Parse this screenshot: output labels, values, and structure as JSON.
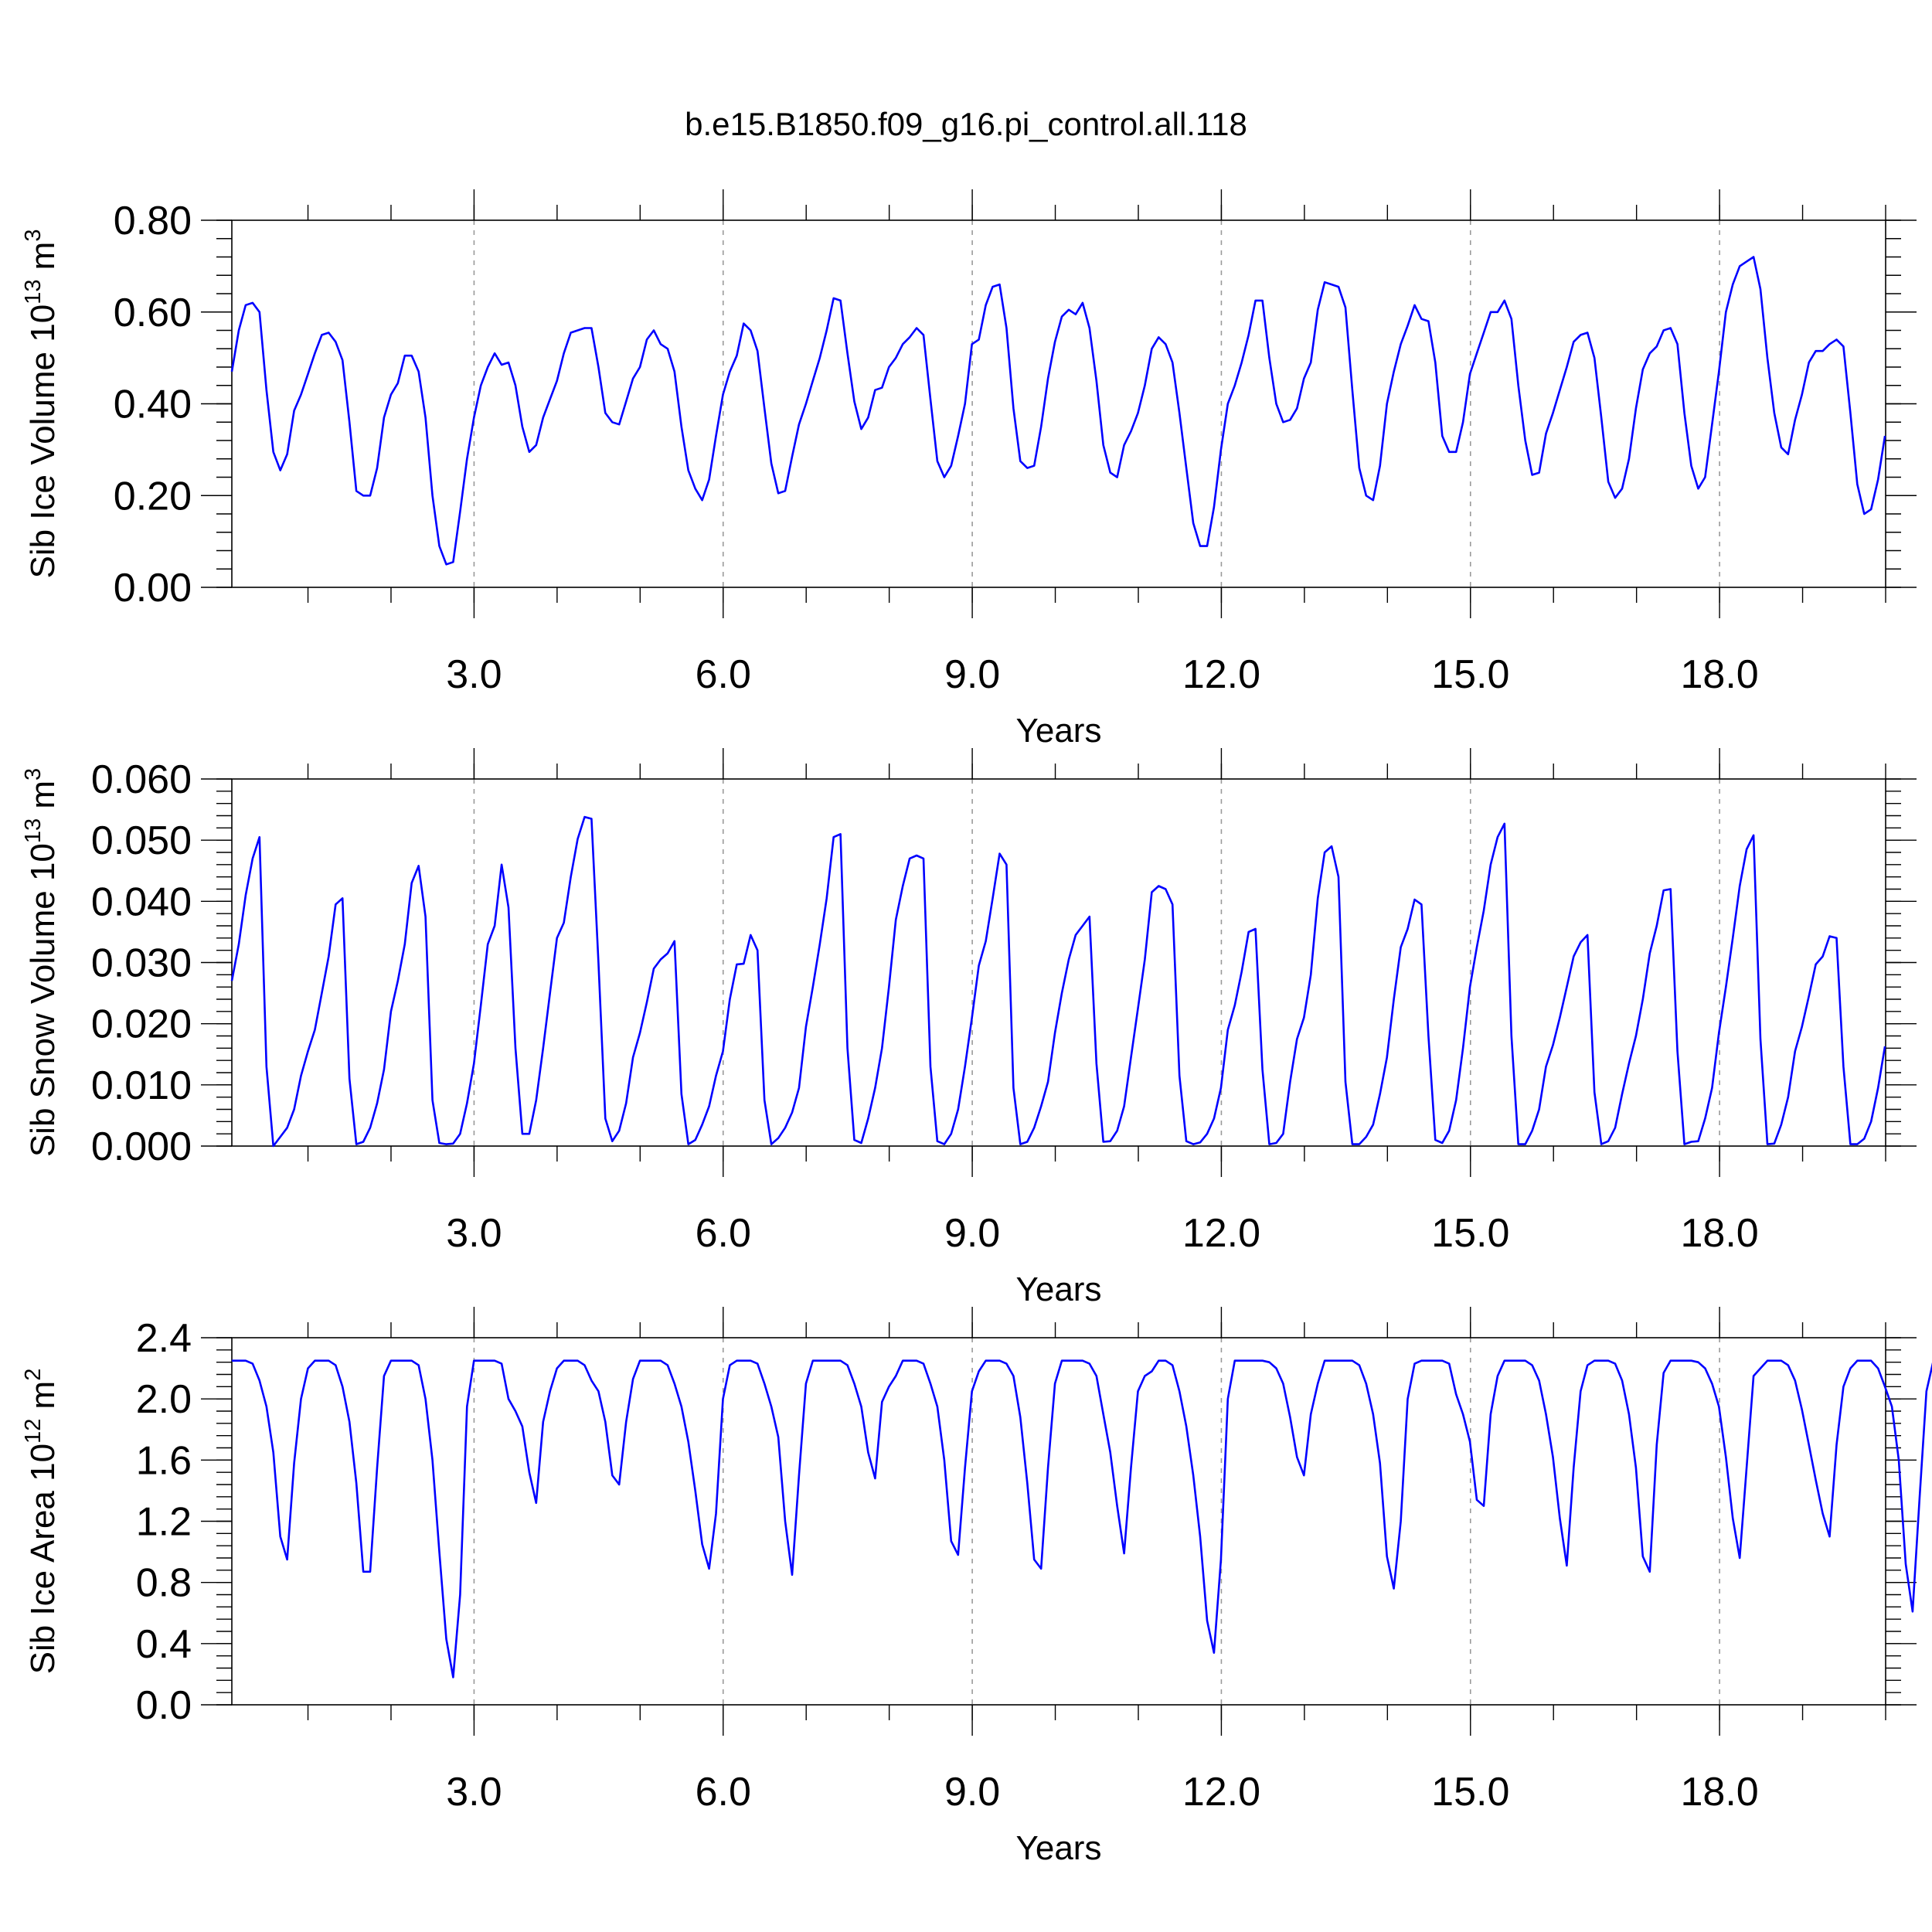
{
  "figure_title": "b.e15.B1850.f09_g16.pi_control.all.118",
  "chart_data": [
    {
      "type": "line",
      "xlabel": "Years",
      "ylabel": {
        "text": "Sib Ice Volume 10",
        "sup": "13",
        "unit": " m",
        "unit_sup": "3"
      },
      "xlim": [
        0.083,
        20.0
      ],
      "ylim": [
        0.0,
        0.8
      ],
      "y_ticks": [
        0.0,
        0.2,
        0.4,
        0.6,
        0.8
      ],
      "y_tick_labels": [
        "0.00",
        "0.20",
        "0.40",
        "0.60",
        "0.80"
      ],
      "y_minor_step": 0.04,
      "x_ticks": [
        3,
        6,
        9,
        12,
        15,
        18
      ],
      "x_tick_labels": [
        "3.0",
        "6.0",
        "9.0",
        "12.0",
        "15.0",
        "18.0"
      ],
      "x_minor_step": 1,
      "grid": "vertical dashed at labeled years",
      "series": [
        {
          "color": "#0000ff",
          "x_start": 0.083,
          "x_step": 0.0833,
          "values": [
            0.47,
            0.56,
            0.615,
            0.62,
            0.6,
            0.43,
            0.295,
            0.255,
            0.29,
            0.385,
            0.42,
            0.465,
            0.51,
            0.55,
            0.555,
            0.535,
            0.495,
            0.36,
            0.21,
            0.2,
            0.2,
            0.26,
            0.37,
            0.42,
            0.445,
            0.505,
            0.505,
            0.47,
            0.37,
            0.2,
            0.09,
            0.05,
            0.055,
            0.165,
            0.28,
            0.37,
            0.44,
            0.48,
            0.51,
            0.485,
            0.49,
            0.44,
            0.35,
            0.295,
            0.31,
            0.37,
            0.41,
            0.45,
            0.51,
            0.555,
            0.56,
            0.565,
            0.565,
            0.48,
            0.38,
            0.36,
            0.355,
            0.405,
            0.455,
            0.48,
            0.54,
            0.56,
            0.53,
            0.52,
            0.47,
            0.35,
            0.255,
            0.215,
            0.19,
            0.235,
            0.33,
            0.42,
            0.47,
            0.505,
            0.575,
            0.56,
            0.515,
            0.39,
            0.27,
            0.205,
            0.21,
            0.285,
            0.355,
            0.4,
            0.45,
            0.5,
            0.56,
            0.63,
            0.625,
            0.51,
            0.405,
            0.345,
            0.37,
            0.43,
            0.435,
            0.48,
            0.5,
            0.53,
            0.545,
            0.565,
            0.55,
            0.41,
            0.275,
            0.24,
            0.265,
            0.33,
            0.4,
            0.53,
            0.54,
            0.615,
            0.655,
            0.66,
            0.565,
            0.39,
            0.275,
            0.26,
            0.265,
            0.35,
            0.455,
            0.535,
            0.59,
            0.605,
            0.595,
            0.62,
            0.565,
            0.45,
            0.31,
            0.25,
            0.24,
            0.31,
            0.34,
            0.38,
            0.44,
            0.52,
            0.545,
            0.53,
            0.49,
            0.38,
            0.26,
            0.14,
            0.09,
            0.09,
            0.175,
            0.3,
            0.4,
            0.44,
            0.49,
            0.55,
            0.625,
            0.625,
            0.5,
            0.4,
            0.36,
            0.365,
            0.39,
            0.455,
            0.49,
            0.605,
            0.665,
            0.66,
            0.655,
            0.61,
            0.43,
            0.26,
            0.2,
            0.19,
            0.265,
            0.4,
            0.47,
            0.53,
            0.57,
            0.615,
            0.585,
            0.58,
            0.49,
            0.33,
            0.295,
            0.295,
            0.36,
            0.465,
            0.51,
            0.555,
            0.6,
            0.6,
            0.625,
            0.585,
            0.44,
            0.32,
            0.245,
            0.25,
            0.335,
            0.38,
            0.43,
            0.48,
            0.535,
            0.55,
            0.555,
            0.5,
            0.37,
            0.23,
            0.195,
            0.215,
            0.28,
            0.39,
            0.475,
            0.51,
            0.525,
            0.56,
            0.565,
            0.53,
            0.38,
            0.265,
            0.215,
            0.24,
            0.355,
            0.47,
            0.6,
            0.66,
            0.7,
            0.71,
            0.72,
            0.65,
            0.5,
            0.38,
            0.305,
            0.29,
            0.365,
            0.42,
            0.49,
            0.515,
            0.515,
            0.53,
            0.54,
            0.525,
            0.38,
            0.225,
            0.16,
            0.17,
            0.235,
            0.33
          ]
        }
      ]
    },
    {
      "type": "line",
      "xlabel": "Years",
      "ylabel": {
        "text": "Sib Snow Volume 10",
        "sup": "13",
        "unit": " m",
        "unit_sup": "3"
      },
      "xlim": [
        0.083,
        20.0
      ],
      "ylim": [
        0.0,
        0.06
      ],
      "y_ticks": [
        0.0,
        0.01,
        0.02,
        0.03,
        0.04,
        0.05,
        0.06
      ],
      "y_tick_labels": [
        "0.000",
        "0.010",
        "0.020",
        "0.030",
        "0.040",
        "0.050",
        "0.060"
      ],
      "y_minor_step": 0.002,
      "x_ticks": [
        3,
        6,
        9,
        12,
        15,
        18
      ],
      "x_tick_labels": [
        "3.0",
        "6.0",
        "9.0",
        "12.0",
        "15.0",
        "18.0"
      ],
      "x_minor_step": 1,
      "grid": "vertical dashed at labeled years",
      "series": [
        {
          "color": "#0000ff",
          "x_start": 0.083,
          "x_step": 0.0833,
          "values": [
            0.027,
            0.033,
            0.041,
            0.047,
            0.0505,
            0.013,
            0.0,
            0.0015,
            0.003,
            0.006,
            0.0115,
            0.0155,
            0.019,
            0.025,
            0.031,
            0.0395,
            0.0405,
            0.011,
            0.0003,
            0.0007,
            0.003,
            0.007,
            0.0125,
            0.022,
            0.027,
            0.033,
            0.043,
            0.0458,
            0.0375,
            0.0075,
            0.0005,
            0.0003,
            0.0004,
            0.002,
            0.007,
            0.0135,
            0.023,
            0.033,
            0.036,
            0.046,
            0.039,
            0.016,
            0.002,
            0.002,
            0.0075,
            0.016,
            0.025,
            0.034,
            0.0365,
            0.044,
            0.0502,
            0.0538,
            0.0535,
            0.03,
            0.0045,
            0.0008,
            0.0025,
            0.007,
            0.0145,
            0.0185,
            0.0235,
            0.029,
            0.0305,
            0.0315,
            0.0335,
            0.0085,
            0.0003,
            0.001,
            0.0035,
            0.0065,
            0.0115,
            0.0155,
            0.024,
            0.0297,
            0.0298,
            0.0345,
            0.032,
            0.0075,
            0.0003,
            0.0013,
            0.003,
            0.0055,
            0.0095,
            0.0195,
            0.026,
            0.033,
            0.0405,
            0.0505,
            0.051,
            0.016,
            0.001,
            0.0005,
            0.0045,
            0.0095,
            0.016,
            0.026,
            0.037,
            0.0425,
            0.047,
            0.0475,
            0.047,
            0.013,
            0.0008,
            0.0003,
            0.002,
            0.006,
            0.013,
            0.021,
            0.0295,
            0.0335,
            0.0405,
            0.0478,
            0.046,
            0.0095,
            0.0003,
            0.0007,
            0.003,
            0.0065,
            0.0105,
            0.0185,
            0.025,
            0.0305,
            0.0345,
            0.036,
            0.0375,
            0.0135,
            0.0007,
            0.0008,
            0.0025,
            0.0065,
            0.0145,
            0.0225,
            0.0305,
            0.0415,
            0.0425,
            0.042,
            0.0395,
            0.0115,
            0.0008,
            0.0003,
            0.0006,
            0.002,
            0.0045,
            0.0095,
            0.019,
            0.023,
            0.0285,
            0.035,
            0.0355,
            0.0125,
            0.0003,
            0.0005,
            0.002,
            0.0105,
            0.0175,
            0.021,
            0.028,
            0.0405,
            0.048,
            0.049,
            0.044,
            0.0105,
            0.0003,
            0.0003,
            0.0015,
            0.0035,
            0.0085,
            0.0145,
            0.024,
            0.0325,
            0.0355,
            0.0403,
            0.0395,
            0.018,
            0.001,
            0.0005,
            0.0025,
            0.0075,
            0.016,
            0.026,
            0.0325,
            0.0385,
            0.046,
            0.0505,
            0.0527,
            0.018,
            0.0003,
            0.0003,
            0.0025,
            0.006,
            0.013,
            0.0165,
            0.021,
            0.026,
            0.031,
            0.0333,
            0.0345,
            0.0088,
            0.0003,
            0.0008,
            0.003,
            0.0085,
            0.0135,
            0.018,
            0.024,
            0.0315,
            0.036,
            0.0418,
            0.042,
            0.0155,
            0.0003,
            0.0007,
            0.0008,
            0.0045,
            0.0095,
            0.0185,
            0.026,
            0.034,
            0.0425,
            0.0485,
            0.0508,
            0.0175,
            0.0003,
            0.0004,
            0.0035,
            0.008,
            0.0155,
            0.0195,
            0.0245,
            0.0297,
            0.031,
            0.0343,
            0.034,
            0.013,
            0.0003,
            0.0003,
            0.0012,
            0.004,
            0.0095,
            0.0163
          ]
        }
      ]
    },
    {
      "type": "line",
      "xlabel": "Years",
      "ylabel": {
        "text": "Sib Ice Area 10",
        "sup": "12",
        "unit": " m",
        "unit_sup": "2"
      },
      "xlim": [
        0.083,
        20.0
      ],
      "ylim": [
        0.0,
        2.4
      ],
      "y_ticks": [
        0.0,
        0.4,
        0.8,
        1.2,
        1.6,
        2.0,
        2.4
      ],
      "y_tick_labels": [
        "0.0",
        "0.4",
        "0.8",
        "1.2",
        "1.6",
        "2.0",
        "2.4"
      ],
      "y_minor_step": 0.08,
      "x_ticks": [
        3,
        6,
        9,
        12,
        15,
        18
      ],
      "x_tick_labels": [
        "3.0",
        "6.0",
        "9.0",
        "12.0",
        "15.0",
        "18.0"
      ],
      "x_minor_step": 1,
      "grid": "vertical dashed at labeled years",
      "series": [
        {
          "color": "#0000ff",
          "x_start": 0.083,
          "x_step": 0.0833,
          "values": [
            2.25,
            2.25,
            2.25,
            2.23,
            2.12,
            1.95,
            1.65,
            1.1,
            0.95,
            1.58,
            2.0,
            2.2,
            2.25,
            2.25,
            2.25,
            2.22,
            2.08,
            1.85,
            1.45,
            0.87,
            0.87,
            1.55,
            2.15,
            2.25,
            2.25,
            2.25,
            2.25,
            2.22,
            2.0,
            1.6,
            1.0,
            0.43,
            0.18,
            0.72,
            1.95,
            2.25,
            2.25,
            2.25,
            2.25,
            2.23,
            2.0,
            1.92,
            1.82,
            1.52,
            1.32,
            1.85,
            2.05,
            2.2,
            2.25,
            2.25,
            2.25,
            2.22,
            2.12,
            2.05,
            1.85,
            1.5,
            1.44,
            1.85,
            2.13,
            2.25,
            2.25,
            2.25,
            2.25,
            2.22,
            2.1,
            1.95,
            1.72,
            1.4,
            1.05,
            0.89,
            1.25,
            2.0,
            2.22,
            2.25,
            2.25,
            2.25,
            2.23,
            2.1,
            1.95,
            1.75,
            1.2,
            0.85,
            1.5,
            2.1,
            2.25,
            2.25,
            2.25,
            2.25,
            2.25,
            2.22,
            2.1,
            1.95,
            1.65,
            1.48,
            1.98,
            2.08,
            2.15,
            2.25,
            2.25,
            2.25,
            2.23,
            2.1,
            1.95,
            1.6,
            1.07,
            0.98,
            1.55,
            2.05,
            2.18,
            2.25,
            2.25,
            2.25,
            2.23,
            2.15,
            1.88,
            1.45,
            0.95,
            0.89,
            1.55,
            2.1,
            2.25,
            2.25,
            2.25,
            2.25,
            2.23,
            2.15,
            1.9,
            1.65,
            1.3,
            0.99,
            1.55,
            2.05,
            2.15,
            2.18,
            2.25,
            2.25,
            2.22,
            2.05,
            1.82,
            1.5,
            1.1,
            0.55,
            0.34,
            0.95,
            2.0,
            2.25,
            2.25,
            2.25,
            2.25,
            2.25,
            2.24,
            2.2,
            2.1,
            1.88,
            1.62,
            1.5,
            1.9,
            2.1,
            2.25,
            2.25,
            2.25,
            2.25,
            2.25,
            2.22,
            2.1,
            1.9,
            1.58,
            0.97,
            0.76,
            1.2,
            2.0,
            2.23,
            2.25,
            2.25,
            2.25,
            2.25,
            2.23,
            2.03,
            1.9,
            1.72,
            1.34,
            1.3,
            1.9,
            2.15,
            2.25,
            2.25,
            2.25,
            2.25,
            2.22,
            2.12,
            1.9,
            1.62,
            1.22,
            0.91,
            1.55,
            2.05,
            2.22,
            2.25,
            2.25,
            2.25,
            2.23,
            2.12,
            1.9,
            1.55,
            0.97,
            0.87,
            1.7,
            2.17,
            2.25,
            2.25,
            2.25,
            2.25,
            2.24,
            2.2,
            2.1,
            1.95,
            1.62,
            1.22,
            0.96,
            1.55,
            2.15,
            2.2,
            2.25,
            2.25,
            2.25,
            2.22,
            2.12,
            1.93,
            1.7,
            1.47,
            1.25,
            1.1,
            1.7,
            2.08,
            2.2,
            2.25,
            2.25,
            2.25,
            2.2,
            2.08,
            1.95,
            1.6,
            0.92,
            0.61,
            1.35,
            2.05,
            2.25
          ]
        }
      ]
    }
  ]
}
